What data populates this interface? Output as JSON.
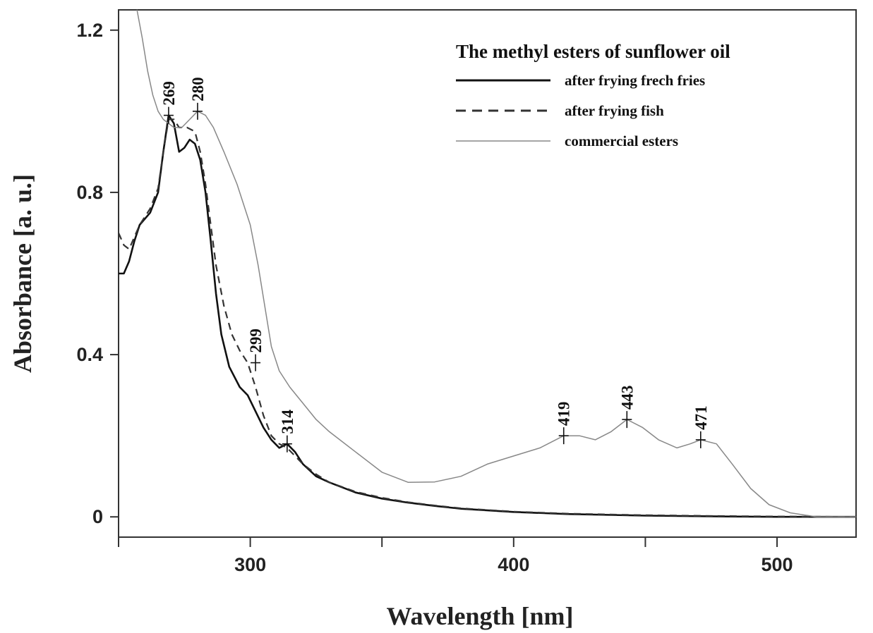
{
  "chart_data": {
    "type": "line",
    "xlabel": "Wavelength [nm]",
    "ylabel": "Absorbance [a. u.]",
    "xlim": [
      250,
      530
    ],
    "ylim": [
      -0.05,
      1.25
    ],
    "x_ticks": [
      300,
      400,
      500
    ],
    "x_minor_ticks": [
      250,
      350,
      450
    ],
    "y_ticks": [
      0,
      0.4,
      0.8,
      1.2
    ],
    "grid": false,
    "legend_position": "top-right",
    "legend_title": "The methyl esters of sunflower oil",
    "series": [
      {
        "name": "after frying frech fries",
        "style": "solid",
        "color": "#111111",
        "points": [
          [
            250,
            0.6
          ],
          [
            252,
            0.6
          ],
          [
            254,
            0.63
          ],
          [
            256,
            0.68
          ],
          [
            258,
            0.72
          ],
          [
            262,
            0.75
          ],
          [
            265,
            0.8
          ],
          [
            267,
            0.9
          ],
          [
            269,
            0.99
          ],
          [
            271,
            0.97
          ],
          [
            273,
            0.9
          ],
          [
            275,
            0.91
          ],
          [
            277,
            0.93
          ],
          [
            279,
            0.92
          ],
          [
            281,
            0.88
          ],
          [
            283,
            0.8
          ],
          [
            285,
            0.68
          ],
          [
            287,
            0.55
          ],
          [
            289,
            0.45
          ],
          [
            292,
            0.37
          ],
          [
            296,
            0.32
          ],
          [
            299,
            0.3
          ],
          [
            302,
            0.26
          ],
          [
            305,
            0.22
          ],
          [
            308,
            0.19
          ],
          [
            311,
            0.17
          ],
          [
            314,
            0.18
          ],
          [
            317,
            0.16
          ],
          [
            320,
            0.13
          ],
          [
            325,
            0.1
          ],
          [
            330,
            0.085
          ],
          [
            340,
            0.06
          ],
          [
            350,
            0.045
          ],
          [
            360,
            0.035
          ],
          [
            370,
            0.027
          ],
          [
            380,
            0.02
          ],
          [
            400,
            0.012
          ],
          [
            420,
            0.007
          ],
          [
            450,
            0.003
          ],
          [
            480,
            0.001
          ],
          [
            500,
            0.0
          ],
          [
            530,
            0.0
          ]
        ]
      },
      {
        "name": "after frying fish",
        "style": "dashed",
        "color": "#333333",
        "points": [
          [
            250,
            0.7
          ],
          [
            252,
            0.67
          ],
          [
            254,
            0.66
          ],
          [
            256,
            0.69
          ],
          [
            258,
            0.72
          ],
          [
            262,
            0.76
          ],
          [
            265,
            0.81
          ],
          [
            267,
            0.9
          ],
          [
            269,
            0.98
          ],
          [
            271,
            0.98
          ],
          [
            273,
            0.96
          ],
          [
            276,
            0.96
          ],
          [
            279,
            0.95
          ],
          [
            281,
            0.9
          ],
          [
            283,
            0.82
          ],
          [
            285,
            0.72
          ],
          [
            287,
            0.62
          ],
          [
            290,
            0.52
          ],
          [
            293,
            0.45
          ],
          [
            296,
            0.41
          ],
          [
            299,
            0.38
          ],
          [
            302,
            0.32
          ],
          [
            305,
            0.25
          ],
          [
            308,
            0.2
          ],
          [
            311,
            0.18
          ],
          [
            314,
            0.17
          ],
          [
            317,
            0.15
          ],
          [
            320,
            0.13
          ],
          [
            325,
            0.105
          ],
          [
            330,
            0.085
          ],
          [
            340,
            0.062
          ],
          [
            350,
            0.047
          ],
          [
            360,
            0.036
          ],
          [
            370,
            0.028
          ],
          [
            380,
            0.021
          ],
          [
            400,
            0.013
          ],
          [
            420,
            0.008
          ],
          [
            450,
            0.004
          ],
          [
            480,
            0.002
          ],
          [
            500,
            0.001
          ],
          [
            530,
            0.0
          ]
        ]
      },
      {
        "name": "commercial esters",
        "style": "solid-thin",
        "color": "#888888",
        "points": [
          [
            257,
            1.25
          ],
          [
            259,
            1.18
          ],
          [
            261,
            1.1
          ],
          [
            263,
            1.04
          ],
          [
            265,
            1.0
          ],
          [
            267,
            0.98
          ],
          [
            269,
            0.97
          ],
          [
            271,
            0.96
          ],
          [
            274,
            0.96
          ],
          [
            277,
            0.98
          ],
          [
            280,
            1.0
          ],
          [
            283,
            0.99
          ],
          [
            286,
            0.96
          ],
          [
            290,
            0.9
          ],
          [
            295,
            0.82
          ],
          [
            300,
            0.72
          ],
          [
            303,
            0.62
          ],
          [
            306,
            0.5
          ],
          [
            308,
            0.42
          ],
          [
            311,
            0.36
          ],
          [
            315,
            0.32
          ],
          [
            320,
            0.28
          ],
          [
            325,
            0.24
          ],
          [
            330,
            0.21
          ],
          [
            340,
            0.16
          ],
          [
            350,
            0.11
          ],
          [
            360,
            0.085
          ],
          [
            370,
            0.086
          ],
          [
            380,
            0.1
          ],
          [
            390,
            0.13
          ],
          [
            400,
            0.15
          ],
          [
            410,
            0.17
          ],
          [
            419,
            0.2
          ],
          [
            425,
            0.2
          ],
          [
            431,
            0.19
          ],
          [
            437,
            0.21
          ],
          [
            443,
            0.24
          ],
          [
            449,
            0.22
          ],
          [
            455,
            0.19
          ],
          [
            462,
            0.17
          ],
          [
            467,
            0.18
          ],
          [
            471,
            0.19
          ],
          [
            477,
            0.18
          ],
          [
            483,
            0.13
          ],
          [
            490,
            0.07
          ],
          [
            497,
            0.03
          ],
          [
            505,
            0.01
          ],
          [
            515,
            0.0
          ],
          [
            530,
            0.0
          ]
        ]
      }
    ],
    "peak_labels": [
      {
        "text": "269",
        "x": 269,
        "y": 0.99
      },
      {
        "text": "280",
        "x": 280,
        "y": 1.0
      },
      {
        "text": "299",
        "x": 302,
        "y": 0.38
      },
      {
        "text": "314",
        "x": 314,
        "y": 0.18
      },
      {
        "text": "419",
        "x": 419,
        "y": 0.2
      },
      {
        "text": "443",
        "x": 443,
        "y": 0.24
      },
      {
        "text": "471",
        "x": 471,
        "y": 0.19
      }
    ]
  }
}
